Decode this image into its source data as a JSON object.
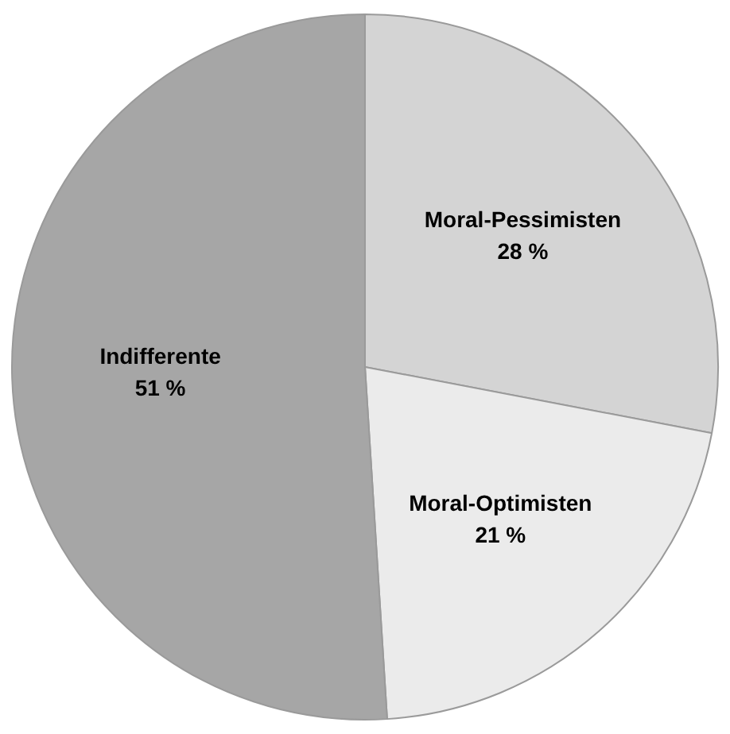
{
  "chart_data": {
    "type": "pie",
    "categories": [
      "Moral-Pessimisten",
      "Moral-Optimisten",
      "Indifferente"
    ],
    "values": [
      28,
      21,
      51
    ],
    "colors": [
      "#d4d4d4",
      "#ebebeb",
      "#a6a6a6"
    ],
    "value_labels": [
      "28 %",
      "21 %",
      "51 %"
    ],
    "legend": false
  }
}
